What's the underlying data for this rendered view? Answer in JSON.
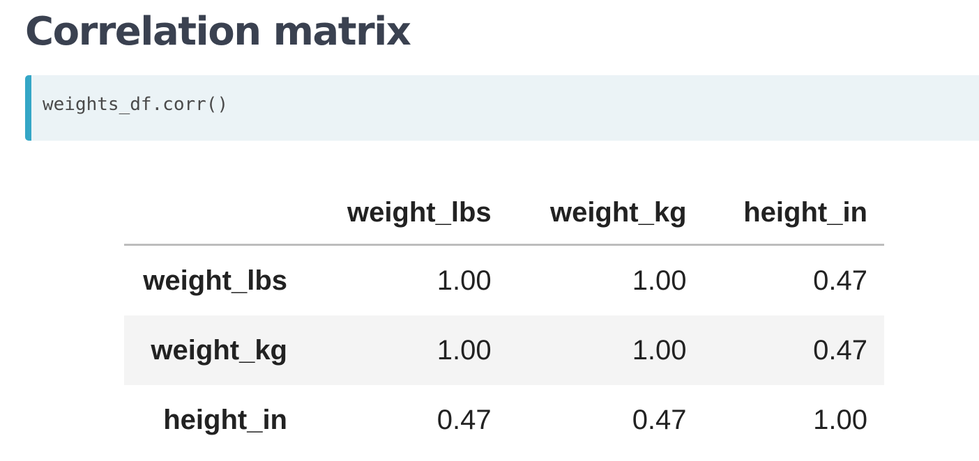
{
  "title": "Correlation matrix",
  "code": {
    "source": "weights_df.corr()"
  },
  "table": {
    "columns": [
      "weight_lbs",
      "weight_kg",
      "height_in"
    ],
    "rows": [
      {
        "label": "weight_lbs",
        "values": [
          "1.00",
          "1.00",
          "0.47"
        ]
      },
      {
        "label": "weight_kg",
        "values": [
          "1.00",
          "1.00",
          "0.47"
        ]
      },
      {
        "label": "height_in",
        "values": [
          "0.47",
          "0.47",
          "1.00"
        ]
      }
    ]
  },
  "colors": {
    "title": "#3a4150",
    "code_background": "#ebf3f6",
    "code_accent": "#34a6c6",
    "striped_row": "#f4f4f4",
    "header_rule": "#bdbdbd"
  }
}
